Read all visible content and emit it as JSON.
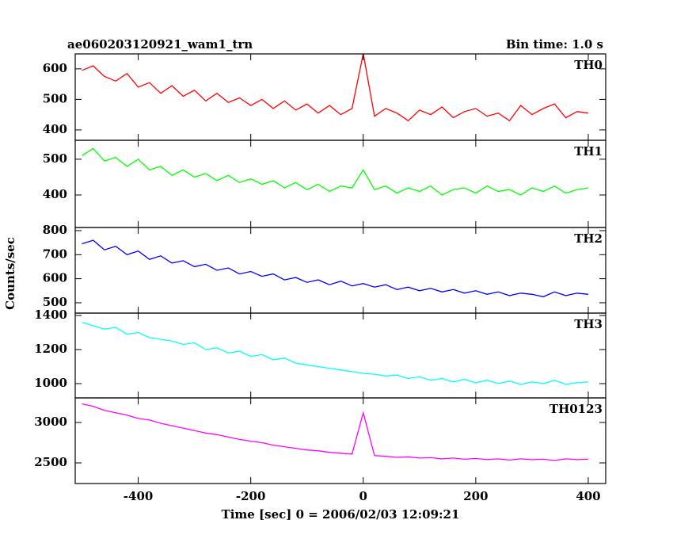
{
  "chart_data": [
    {
      "type": "line",
      "title": "ae060203120921_wam1_trn",
      "subtitle": "Bin time: 1.0 s",
      "x": [
        -500,
        -480,
        -460,
        -440,
        -420,
        -400,
        -380,
        -360,
        -340,
        -320,
        -300,
        -280,
        -260,
        -240,
        -220,
        -200,
        -180,
        -160,
        -140,
        -120,
        -100,
        -80,
        -60,
        -40,
        -20,
        0,
        20,
        40,
        60,
        80,
        100,
        120,
        140,
        160,
        180,
        200,
        220,
        240,
        260,
        280,
        300,
        320,
        340,
        360,
        380,
        400
      ],
      "series": [
        {
          "name": "TH0",
          "color": "#ff0000",
          "values": [
            595,
            610,
            575,
            560,
            585,
            540,
            555,
            520,
            545,
            510,
            530,
            495,
            520,
            490,
            505,
            480,
            500,
            470,
            495,
            465,
            485,
            455,
            480,
            450,
            470,
            650,
            445,
            470,
            455,
            430,
            465,
            450,
            475,
            440,
            460,
            470,
            445,
            455,
            430,
            480,
            450,
            470,
            485,
            440,
            460,
            455
          ]
        }
      ],
      "xlim": [
        -512,
        431
      ],
      "ylim": [
        366,
        649
      ],
      "yticks": [
        400,
        500,
        600
      ]
    },
    {
      "type": "line",
      "x": [
        -500,
        -480,
        -460,
        -440,
        -420,
        -400,
        -380,
        -360,
        -340,
        -320,
        -300,
        -280,
        -260,
        -240,
        -220,
        -200,
        -180,
        -160,
        -140,
        -120,
        -100,
        -80,
        -60,
        -40,
        -20,
        0,
        20,
        40,
        60,
        80,
        100,
        120,
        140,
        160,
        180,
        200,
        220,
        240,
        260,
        280,
        300,
        320,
        340,
        360,
        380,
        400
      ],
      "series": [
        {
          "name": "TH1",
          "color": "#00ff00",
          "values": [
            510,
            530,
            495,
            505,
            480,
            500,
            470,
            480,
            455,
            470,
            450,
            460,
            440,
            455,
            435,
            445,
            430,
            440,
            420,
            435,
            415,
            430,
            410,
            425,
            420,
            470,
            415,
            425,
            405,
            420,
            410,
            425,
            400,
            415,
            420,
            405,
            425,
            410,
            415,
            400,
            420,
            410,
            425,
            405,
            415,
            420
          ]
        }
      ],
      "xlim": [
        -512,
        431
      ],
      "ylim": [
        309,
        553
      ],
      "yticks": [
        400,
        500
      ]
    },
    {
      "type": "line",
      "ylabel": "Counts/sec",
      "x": [
        -500,
        -480,
        -460,
        -440,
        -420,
        -400,
        -380,
        -360,
        -340,
        -320,
        -300,
        -280,
        -260,
        -240,
        -220,
        -200,
        -180,
        -160,
        -140,
        -120,
        -100,
        -80,
        -60,
        -40,
        -20,
        0,
        20,
        40,
        60,
        80,
        100,
        120,
        140,
        160,
        180,
        200,
        220,
        240,
        260,
        280,
        300,
        320,
        340,
        360,
        380,
        400
      ],
      "series": [
        {
          "name": "TH2",
          "color": "#0000ff",
          "values": [
            745,
            760,
            720,
            735,
            700,
            715,
            680,
            695,
            665,
            675,
            650,
            660,
            635,
            645,
            620,
            630,
            610,
            620,
            595,
            605,
            585,
            595,
            575,
            590,
            570,
            580,
            565,
            575,
            555,
            565,
            550,
            560,
            545,
            555,
            540,
            550,
            535,
            545,
            530,
            540,
            535,
            525,
            545,
            530,
            540,
            535
          ]
        }
      ],
      "xlim": [
        -512,
        431
      ],
      "ylim": [
        457,
        813
      ],
      "yticks": [
        500,
        600,
        700,
        800
      ]
    },
    {
      "type": "line",
      "x": [
        -500,
        -480,
        -460,
        -440,
        -420,
        -400,
        -380,
        -360,
        -340,
        -320,
        -300,
        -280,
        -260,
        -240,
        -220,
        -200,
        -180,
        -160,
        -140,
        -120,
        -100,
        -80,
        -60,
        -40,
        -20,
        0,
        20,
        40,
        60,
        80,
        100,
        120,
        140,
        160,
        180,
        200,
        220,
        240,
        260,
        280,
        300,
        320,
        340,
        360,
        380,
        400
      ],
      "series": [
        {
          "name": "TH3",
          "color": "#00ffff",
          "values": [
            1360,
            1340,
            1320,
            1330,
            1290,
            1300,
            1270,
            1260,
            1250,
            1230,
            1240,
            1200,
            1210,
            1180,
            1190,
            1160,
            1170,
            1140,
            1150,
            1120,
            1110,
            1100,
            1090,
            1080,
            1070,
            1060,
            1055,
            1045,
            1050,
            1030,
            1040,
            1020,
            1030,
            1010,
            1025,
            1005,
            1020,
            1000,
            1015,
            995,
            1010,
            1000,
            1020,
            995,
            1005,
            1010
          ]
        }
      ],
      "xlim": [
        -512,
        431
      ],
      "ylim": [
        916,
        1414
      ],
      "yticks": [
        1000,
        1200,
        1400
      ]
    },
    {
      "type": "line",
      "xlabel": "Time [sec] 0 = 2006/02/03 12:09:21",
      "x": [
        -500,
        -480,
        -460,
        -440,
        -420,
        -400,
        -380,
        -360,
        -340,
        -320,
        -300,
        -280,
        -260,
        -240,
        -220,
        -200,
        -180,
        -160,
        -140,
        -120,
        -100,
        -80,
        -60,
        -40,
        -20,
        0,
        20,
        40,
        60,
        80,
        100,
        120,
        140,
        160,
        180,
        200,
        220,
        240,
        260,
        280,
        300,
        320,
        340,
        360,
        380,
        400
      ],
      "series": [
        {
          "name": "TH0123",
          "color": "#ff00ff",
          "values": [
            3230,
            3200,
            3150,
            3120,
            3090,
            3050,
            3030,
            2990,
            2960,
            2930,
            2900,
            2870,
            2850,
            2820,
            2790,
            2770,
            2750,
            2720,
            2700,
            2680,
            2660,
            2650,
            2630,
            2620,
            2610,
            3120,
            2590,
            2580,
            2570,
            2575,
            2560,
            2565,
            2550,
            2560,
            2545,
            2555,
            2540,
            2550,
            2535,
            2550,
            2540,
            2545,
            2530,
            2550,
            2540,
            2545
          ]
        }
      ],
      "xlim": [
        -512,
        431
      ],
      "ylim": [
        2245,
        3304
      ],
      "yticks": [
        2500,
        3000
      ],
      "xticks": [
        -400,
        -200,
        0,
        200,
        400
      ]
    }
  ]
}
